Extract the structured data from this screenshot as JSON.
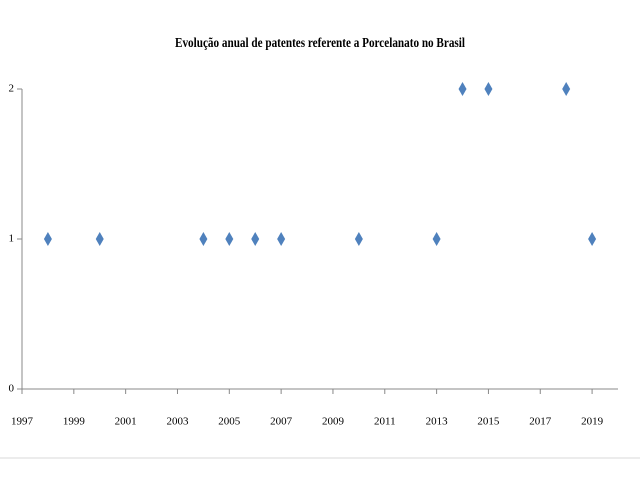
{
  "chart_data": {
    "type": "scatter",
    "title": "Evolução anual de patentes referente a Porcelanato no Brasil",
    "x": [
      1998,
      2000,
      2004,
      2005,
      2006,
      2007,
      2010,
      2013,
      2014,
      2015,
      2018,
      2019
    ],
    "values": [
      1,
      1,
      1,
      1,
      1,
      1,
      1,
      1,
      2,
      2,
      2,
      1
    ],
    "color": "#4f81bd",
    "xlim": [
      1997,
      2020
    ],
    "xticks": [
      1997,
      1999,
      2001,
      2003,
      2005,
      2007,
      2009,
      2011,
      2013,
      2015,
      2017,
      2019
    ],
    "ylim": [
      0,
      2
    ],
    "yticks": [
      0,
      1,
      2
    ],
    "grid": false
  }
}
